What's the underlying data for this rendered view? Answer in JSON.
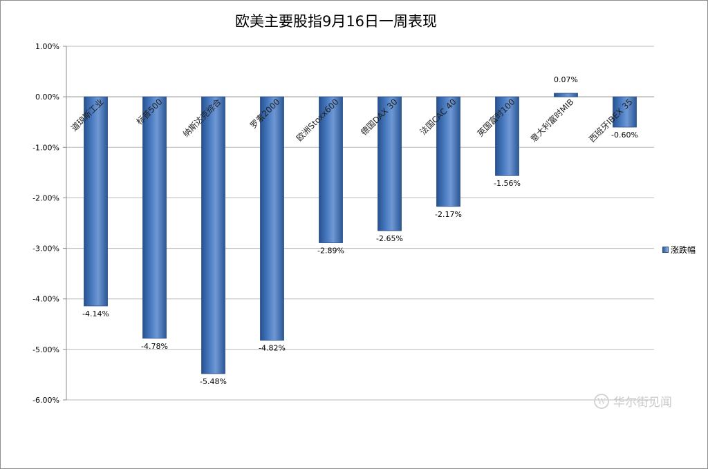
{
  "chart_data": {
    "type": "bar",
    "title": "欧美主要股指9月16日一周表现",
    "categories": [
      "道琼斯工业",
      "标普500",
      "纳斯达克综合",
      "罗素2000",
      "欧洲Stoxx600",
      "德国DAX 30",
      "法国CAC 40",
      "英国富时100",
      "意大利富时MIB",
      "西班牙IBEX 35"
    ],
    "series": [
      {
        "name": "涨跌幅",
        "values": [
          -4.14,
          -4.78,
          -5.48,
          -4.82,
          -2.89,
          -2.65,
          -2.17,
          -1.56,
          0.07,
          -0.6
        ],
        "labels": [
          "-4.14%",
          "-4.78%",
          "-5.48%",
          "-4.82%",
          "-2.89%",
          "-2.65%",
          "-2.17%",
          "-1.56%",
          "0.07%",
          "-0.60%"
        ]
      }
    ],
    "yticks": [
      "1.00%",
      "0.00%",
      "-1.00%",
      "-2.00%",
      "-3.00%",
      "-4.00%",
      "-5.00%",
      "-6.00%"
    ],
    "ylim": [
      -6,
      1
    ],
    "grid": true,
    "legend_position": "right",
    "bar_color": "#3f6fb2"
  },
  "watermark": {
    "text": "华尔街见闻",
    "logo_glyph": "W"
  }
}
